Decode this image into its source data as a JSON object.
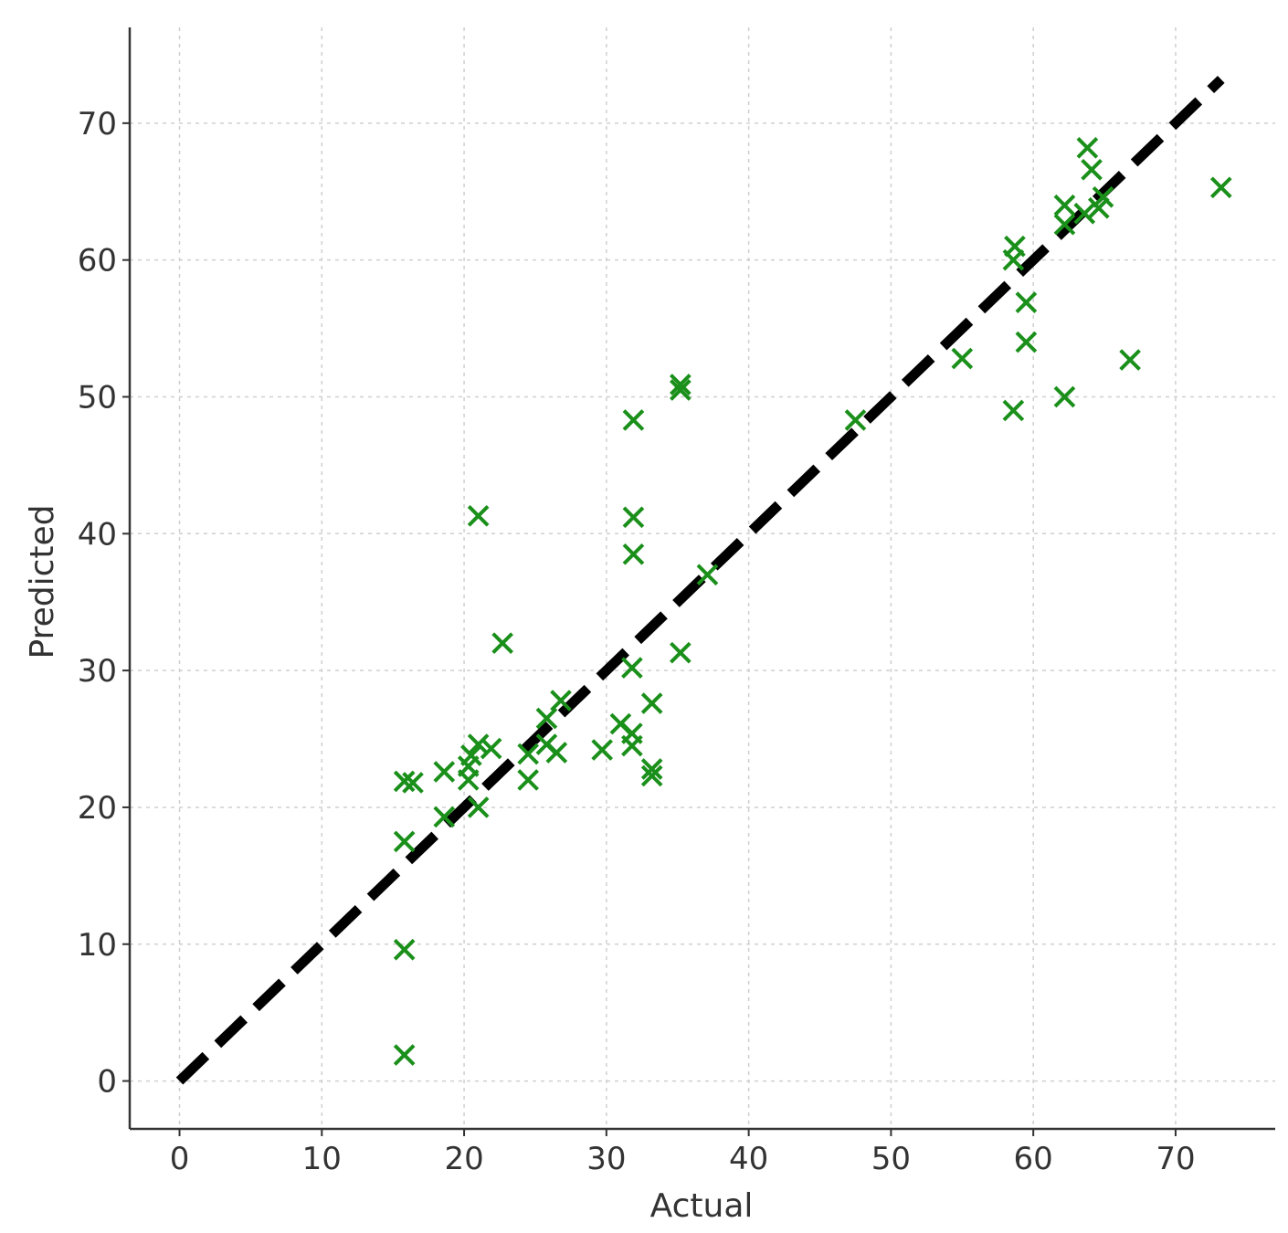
{
  "chart_data": {
    "type": "scatter",
    "title": "",
    "xlabel": "Actual",
    "ylabel": "Predicted",
    "xlim": [
      -3.5,
      77
    ],
    "ylim": [
      -3.5,
      77
    ],
    "x_ticks": [
      0,
      10,
      20,
      30,
      40,
      50,
      60,
      70
    ],
    "y_ticks": [
      0,
      10,
      20,
      30,
      40,
      50,
      60,
      70
    ],
    "grid": true,
    "marker": "x",
    "marker_color": "#1a8f1a",
    "reference_line": {
      "style": "dashed",
      "color": "#000000",
      "from": [
        0,
        0
      ],
      "to": [
        73.2,
        73.2
      ]
    },
    "points": [
      {
        "x": 15.8,
        "y": 1.9
      },
      {
        "x": 15.8,
        "y": 9.6
      },
      {
        "x": 15.8,
        "y": 17.5
      },
      {
        "x": 15.8,
        "y": 21.9
      },
      {
        "x": 16.4,
        "y": 21.8
      },
      {
        "x": 18.6,
        "y": 19.3
      },
      {
        "x": 18.6,
        "y": 22.6
      },
      {
        "x": 20.3,
        "y": 22.0
      },
      {
        "x": 20.3,
        "y": 23.0
      },
      {
        "x": 20.5,
        "y": 23.8
      },
      {
        "x": 21.0,
        "y": 20.0
      },
      {
        "x": 21.0,
        "y": 24.6
      },
      {
        "x": 21.0,
        "y": 41.3
      },
      {
        "x": 21.9,
        "y": 24.3
      },
      {
        "x": 22.7,
        "y": 32.0
      },
      {
        "x": 24.5,
        "y": 22.0
      },
      {
        "x": 24.5,
        "y": 23.9
      },
      {
        "x": 25.8,
        "y": 24.6
      },
      {
        "x": 25.8,
        "y": 26.5
      },
      {
        "x": 26.5,
        "y": 24.0
      },
      {
        "x": 26.8,
        "y": 27.8
      },
      {
        "x": 29.7,
        "y": 24.2
      },
      {
        "x": 31.0,
        "y": 26.1
      },
      {
        "x": 31.8,
        "y": 24.5
      },
      {
        "x": 31.8,
        "y": 25.4
      },
      {
        "x": 31.8,
        "y": 30.2
      },
      {
        "x": 31.9,
        "y": 38.5
      },
      {
        "x": 31.9,
        "y": 41.2
      },
      {
        "x": 31.9,
        "y": 48.3
      },
      {
        "x": 33.2,
        "y": 22.3
      },
      {
        "x": 33.2,
        "y": 22.8
      },
      {
        "x": 33.2,
        "y": 27.6
      },
      {
        "x": 35.2,
        "y": 31.3
      },
      {
        "x": 35.2,
        "y": 50.5
      },
      {
        "x": 35.2,
        "y": 50.9
      },
      {
        "x": 37.1,
        "y": 37.0
      },
      {
        "x": 47.5,
        "y": 48.3
      },
      {
        "x": 55.0,
        "y": 52.8
      },
      {
        "x": 58.6,
        "y": 49.0
      },
      {
        "x": 58.6,
        "y": 60.0
      },
      {
        "x": 58.7,
        "y": 61.0
      },
      {
        "x": 59.5,
        "y": 54.0
      },
      {
        "x": 59.5,
        "y": 56.9
      },
      {
        "x": 62.2,
        "y": 50.0
      },
      {
        "x": 62.2,
        "y": 62.6
      },
      {
        "x": 62.2,
        "y": 64.0
      },
      {
        "x": 63.6,
        "y": 63.4
      },
      {
        "x": 63.8,
        "y": 68.2
      },
      {
        "x": 64.1,
        "y": 66.6
      },
      {
        "x": 64.6,
        "y": 63.8
      },
      {
        "x": 64.9,
        "y": 64.6
      },
      {
        "x": 66.8,
        "y": 52.7
      },
      {
        "x": 73.2,
        "y": 65.3
      }
    ]
  }
}
